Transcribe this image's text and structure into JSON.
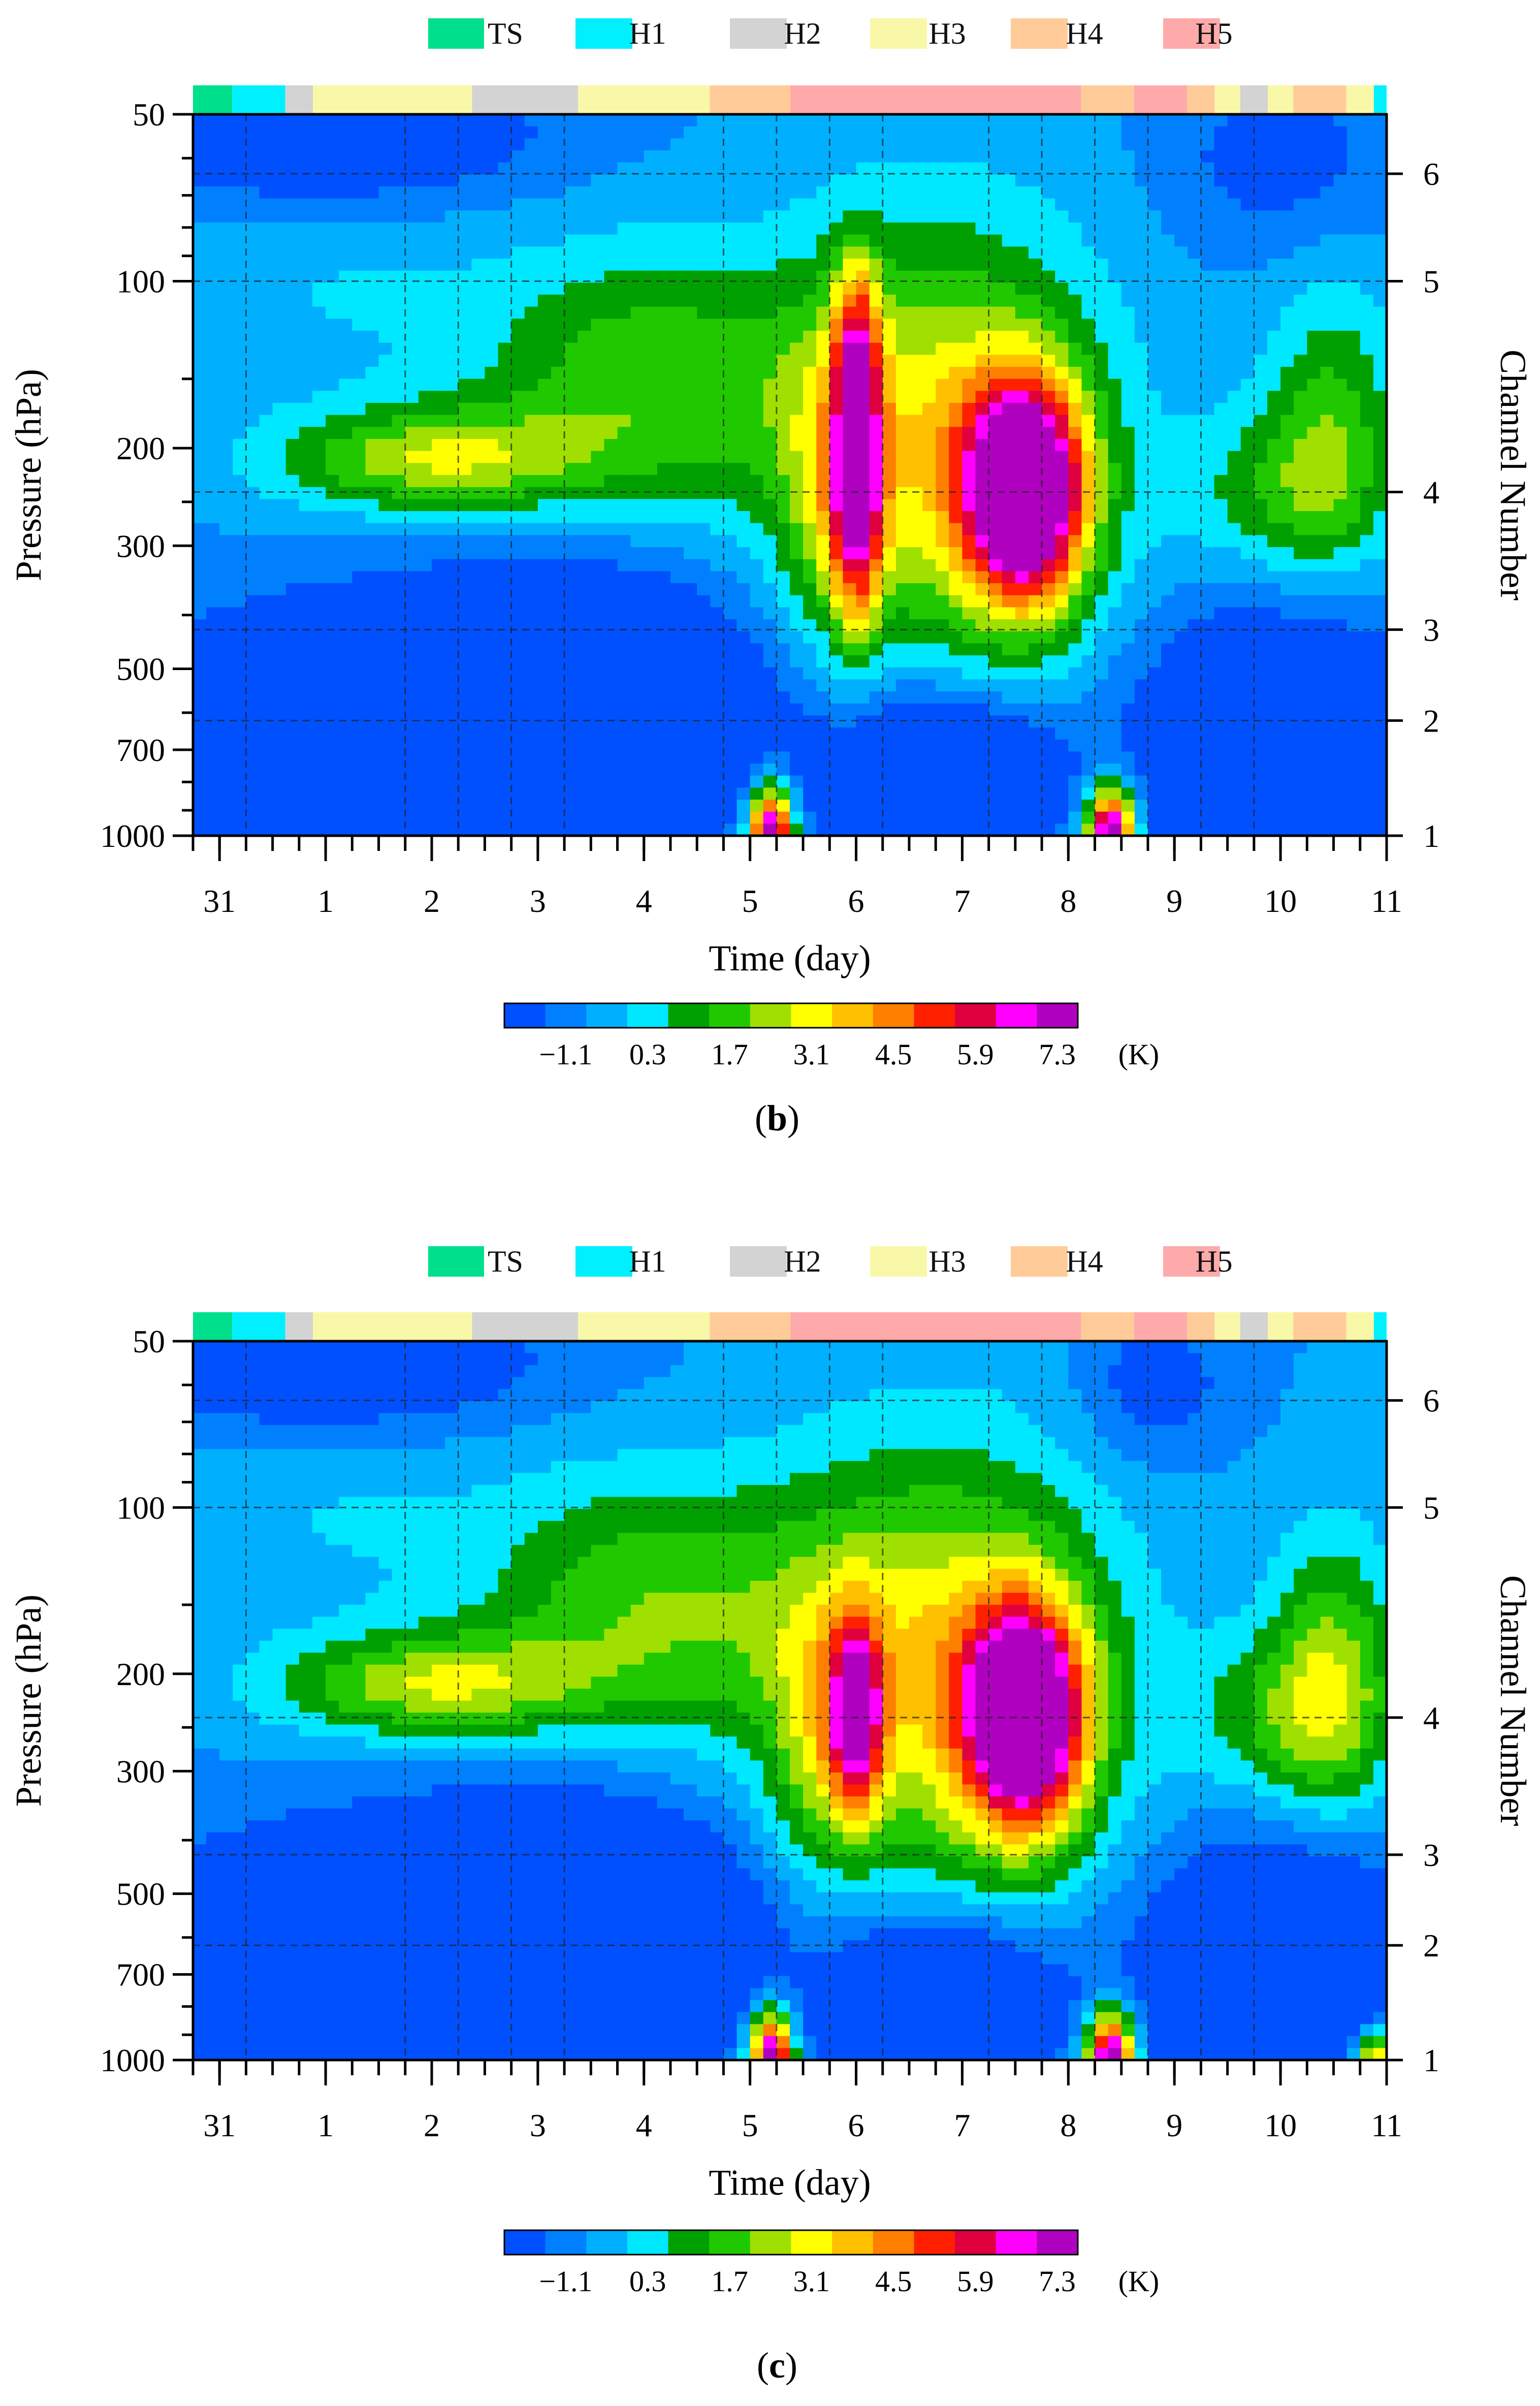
{
  "intensity_legend": [
    {
      "code": "TS",
      "color": "#00e08c"
    },
    {
      "code": "H1",
      "color": "#00f0ff"
    },
    {
      "code": "H2",
      "color": "#d3d3d3"
    },
    {
      "code": "H3",
      "color": "#f8f8a8"
    },
    {
      "code": "H4",
      "color": "#ffcc99"
    },
    {
      "code": "H5",
      "color": "#ffaaaa"
    }
  ],
  "intensity_timeline": [
    {
      "code": "TS",
      "start": 30.75,
      "end": 31.12
    },
    {
      "code": "H1",
      "start": 31.12,
      "end": 31.62
    },
    {
      "code": "H2",
      "start": 31.62,
      "end": 31.88
    },
    {
      "code": "H3",
      "start": 31.88,
      "end": 33.38
    },
    {
      "code": "H2",
      "start": 33.38,
      "end": 34.38
    },
    {
      "code": "H3",
      "start": 34.38,
      "end": 35.62
    },
    {
      "code": "H4",
      "start": 35.62,
      "end": 36.38
    },
    {
      "code": "H5",
      "start": 36.38,
      "end": 39.12
    },
    {
      "code": "H4",
      "start": 39.12,
      "end": 39.62
    },
    {
      "code": "H5",
      "start": 39.62,
      "end": 40.12
    },
    {
      "code": "H4",
      "start": 40.12,
      "end": 40.38
    },
    {
      "code": "H3",
      "start": 40.38,
      "end": 40.62
    },
    {
      "code": "H2",
      "start": 40.62,
      "end": 40.88
    },
    {
      "code": "H3",
      "start": 40.88,
      "end": 41.12
    },
    {
      "code": "H4",
      "start": 41.12,
      "end": 41.62
    },
    {
      "code": "H3",
      "start": 41.62,
      "end": 41.88
    },
    {
      "code": "H1",
      "start": 41.88,
      "end": 42.0
    }
  ],
  "chart_data": [
    {
      "type": "heatmap",
      "panel_label": "b",
      "xlabel": "Time (day)",
      "ylabel": "Pressure (hPa)",
      "y2label": "Channel Number",
      "x_ticks": [
        {
          "v": 31,
          "label": "31"
        },
        {
          "v": 32,
          "label": "1"
        },
        {
          "v": 33,
          "label": "2"
        },
        {
          "v": 34,
          "label": "3"
        },
        {
          "v": 35,
          "label": "4"
        },
        {
          "v": 36,
          "label": "5"
        },
        {
          "v": 37,
          "label": "6"
        },
        {
          "v": 38,
          "label": "7"
        },
        {
          "v": 39,
          "label": "8"
        },
        {
          "v": 40,
          "label": "9"
        },
        {
          "v": 41,
          "label": "10"
        },
        {
          "v": 42,
          "label": "11"
        }
      ],
      "y_ticks": [
        {
          "p": 50,
          "label": "50"
        },
        {
          "p": 100,
          "label": "100"
        },
        {
          "p": 200,
          "label": "200"
        },
        {
          "p": 300,
          "label": "300"
        },
        {
          "p": 500,
          "label": "500"
        },
        {
          "p": 700,
          "label": "700"
        },
        {
          "p": 1000,
          "label": "1000"
        }
      ],
      "channels": [
        {
          "p": 1000,
          "label": "1"
        },
        {
          "p": 620,
          "label": "2"
        },
        {
          "p": 425,
          "label": "3"
        },
        {
          "p": 240,
          "label": "4"
        },
        {
          "p": 100,
          "label": "5"
        },
        {
          "p": 64,
          "label": "6"
        }
      ],
      "ylim": [
        50,
        1000
      ],
      "xlim": [
        30.75,
        42.0
      ],
      "colorbar": {
        "unit": "(K)",
        "labels": [
          "−1.1",
          "0.3",
          "1.7",
          "3.1",
          "4.5",
          "5.9",
          "7.3"
        ],
        "colors": [
          "#0050ff",
          "#0080ff",
          "#00b0ff",
          "#00e8ff",
          "#00a000",
          "#20c800",
          "#a0e000",
          "#ffff00",
          "#ffc000",
          "#ff8000",
          "#ff2000",
          "#e00040",
          "#ff00ff",
          "#b000c0"
        ]
      },
      "features": [
        {
          "t": "blob",
          "x": 38.6,
          "p": 240,
          "rx": 0.55,
          "rl": 0.45,
          "amp": 9.2
        },
        {
          "t": "blob",
          "x": 37.0,
          "p": 240,
          "rx": 0.25,
          "rl": 0.55,
          "amp": 6.5
        },
        {
          "t": "blob",
          "x": 36.6,
          "p": 250,
          "rx": 0.35,
          "rl": 0.6,
          "amp": 1.2
        },
        {
          "t": "blob",
          "x": 37.8,
          "p": 200,
          "rx": 1.5,
          "rl": 0.9,
          "amp": 4.0
        },
        {
          "t": "blob",
          "x": 37.0,
          "p": 125,
          "rx": 0.22,
          "rl": 0.35,
          "amp": 3.2
        },
        {
          "t": "blob",
          "x": 36.2,
          "p": 1000,
          "rx": 0.2,
          "rl": 0.2,
          "amp": 9.5
        },
        {
          "t": "blob",
          "x": 39.4,
          "p": 1000,
          "rx": 0.22,
          "rl": 0.2,
          "amp": 9.5
        },
        {
          "t": "blob",
          "x": 33.0,
          "p": 210,
          "rx": 1.5,
          "rl": 0.22,
          "amp": 3.3
        },
        {
          "t": "blob",
          "x": 35.0,
          "p": 150,
          "rx": 1.6,
          "rl": 0.55,
          "amp": 2.6
        },
        {
          "t": "blob",
          "x": 41.5,
          "p": 180,
          "rx": 0.6,
          "rl": 0.6,
          "amp": 2.2
        },
        {
          "t": "blob",
          "x": 41.0,
          "p": 240,
          "rx": 0.9,
          "rl": 0.35,
          "amp": 1.8
        },
        {
          "t": "blob",
          "x": 32.0,
          "p": 100,
          "rx": 1.6,
          "rl": 0.45,
          "amp": 0.7
        },
        {
          "t": "blob",
          "x": 32.0,
          "p": 55,
          "rx": 2.0,
          "rl": 0.3,
          "amp": -2.0
        },
        {
          "t": "blob",
          "x": 34.4,
          "p": 580,
          "rx": 1.8,
          "rl": 0.55,
          "amp": -3.4
        },
        {
          "t": "blob",
          "x": 32.0,
          "p": 700,
          "rx": 1.8,
          "rl": 0.5,
          "amp": -3.4
        },
        {
          "t": "blob",
          "x": 37.8,
          "p": 780,
          "rx": 1.0,
          "rl": 0.35,
          "amp": -3.6
        },
        {
          "t": "blob",
          "x": 41.0,
          "p": 700,
          "rx": 1.3,
          "rl": 0.55,
          "amp": -3.4
        },
        {
          "t": "blob",
          "x": 41.0,
          "p": 60,
          "rx": 1.0,
          "rl": 0.35,
          "amp": -1.2
        }
      ]
    },
    {
      "type": "heatmap",
      "panel_label": "c",
      "xlabel": "Time (day)",
      "ylabel": "Pressure (hPa)",
      "y2label": "Channel Number",
      "x_ticks": [
        {
          "v": 31,
          "label": "31"
        },
        {
          "v": 32,
          "label": "1"
        },
        {
          "v": 33,
          "label": "2"
        },
        {
          "v": 34,
          "label": "3"
        },
        {
          "v": 35,
          "label": "4"
        },
        {
          "v": 36,
          "label": "5"
        },
        {
          "v": 37,
          "label": "6"
        },
        {
          "v": 38,
          "label": "7"
        },
        {
          "v": 39,
          "label": "8"
        },
        {
          "v": 40,
          "label": "9"
        },
        {
          "v": 41,
          "label": "10"
        },
        {
          "v": 42,
          "label": "11"
        }
      ],
      "y_ticks": [
        {
          "p": 50,
          "label": "50"
        },
        {
          "p": 100,
          "label": "100"
        },
        {
          "p": 200,
          "label": "200"
        },
        {
          "p": 300,
          "label": "300"
        },
        {
          "p": 500,
          "label": "500"
        },
        {
          "p": 700,
          "label": "700"
        },
        {
          "p": 1000,
          "label": "1000"
        }
      ],
      "channels": [
        {
          "p": 1000,
          "label": "1"
        },
        {
          "p": 620,
          "label": "2"
        },
        {
          "p": 425,
          "label": "3"
        },
        {
          "p": 240,
          "label": "4"
        },
        {
          "p": 100,
          "label": "5"
        },
        {
          "p": 64,
          "label": "6"
        }
      ],
      "ylim": [
        50,
        1000
      ],
      "xlim": [
        30.75,
        42.0
      ],
      "colorbar": {
        "unit": "(K)",
        "labels": [
          "−1.1",
          "0.3",
          "1.7",
          "3.1",
          "4.5",
          "5.9",
          "7.3"
        ],
        "colors": [
          "#0050ff",
          "#0080ff",
          "#00b0ff",
          "#00e8ff",
          "#00a000",
          "#20c800",
          "#a0e000",
          "#ffff00",
          "#ffc000",
          "#ff8000",
          "#ff2000",
          "#e00040",
          "#ff00ff",
          "#b000c0"
        ]
      },
      "features": [
        {
          "t": "blob",
          "x": 38.6,
          "p": 240,
          "rx": 0.55,
          "rl": 0.45,
          "amp": 9.0
        },
        {
          "t": "blob",
          "x": 37.0,
          "p": 240,
          "rx": 0.25,
          "rl": 0.4,
          "amp": 5.8
        },
        {
          "t": "blob",
          "x": 36.6,
          "p": 270,
          "rx": 0.4,
          "rl": 0.6,
          "amp": 1.6
        },
        {
          "t": "blob",
          "x": 37.8,
          "p": 200,
          "rx": 1.6,
          "rl": 0.9,
          "amp": 4.2
        },
        {
          "t": "blob",
          "x": 36.2,
          "p": 1000,
          "rx": 0.2,
          "rl": 0.2,
          "amp": 9.0
        },
        {
          "t": "blob",
          "x": 39.4,
          "p": 1000,
          "rx": 0.22,
          "rl": 0.2,
          "amp": 9.3
        },
        {
          "t": "blob",
          "x": 33.0,
          "p": 210,
          "rx": 1.5,
          "rl": 0.22,
          "amp": 3.3
        },
        {
          "t": "blob",
          "x": 35.0,
          "p": 150,
          "rx": 1.6,
          "rl": 0.55,
          "amp": 2.6
        },
        {
          "t": "blob",
          "x": 41.5,
          "p": 200,
          "rx": 0.6,
          "rl": 0.6,
          "amp": 2.8
        },
        {
          "t": "blob",
          "x": 41.0,
          "p": 240,
          "rx": 0.9,
          "rl": 0.35,
          "amp": 1.8
        },
        {
          "t": "blob",
          "x": 32.0,
          "p": 100,
          "rx": 1.6,
          "rl": 0.45,
          "amp": 0.7
        },
        {
          "t": "blob",
          "x": 32.0,
          "p": 55,
          "rx": 2.0,
          "rl": 0.3,
          "amp": -2.0
        },
        {
          "t": "blob",
          "x": 34.4,
          "p": 580,
          "rx": 1.8,
          "rl": 0.55,
          "amp": -3.4
        },
        {
          "t": "blob",
          "x": 32.0,
          "p": 700,
          "rx": 1.8,
          "rl": 0.5,
          "amp": -3.4
        },
        {
          "t": "blob",
          "x": 37.8,
          "p": 780,
          "rx": 1.0,
          "rl": 0.35,
          "amp": -3.6
        },
        {
          "t": "blob",
          "x": 41.0,
          "p": 700,
          "rx": 1.3,
          "rl": 0.55,
          "amp": -3.4
        },
        {
          "t": "blob",
          "x": 39.8,
          "p": 60,
          "rx": 0.7,
          "rl": 0.3,
          "amp": -1.3
        },
        {
          "t": "blob",
          "x": 41.9,
          "p": 1000,
          "rx": 0.25,
          "rl": 0.15,
          "amp": 5.2
        }
      ]
    }
  ]
}
